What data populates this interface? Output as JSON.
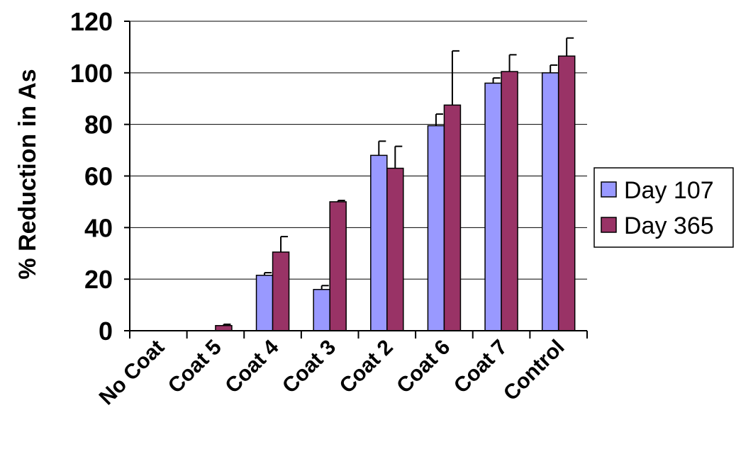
{
  "chart_data": {
    "type": "bar",
    "ylabel": "% Reduction in As",
    "xlabel": "",
    "title": "",
    "ylim": [
      0,
      120
    ],
    "yticks": [
      0,
      20,
      40,
      60,
      80,
      100,
      120
    ],
    "grid": true,
    "legend_position": "right",
    "categories": [
      "No Coat",
      "Coat 5",
      "Coat 4",
      "Coat 3",
      "Coat 2",
      "Coat 6",
      "Coat 7",
      "Control"
    ],
    "series": [
      {
        "name": "Day 107",
        "color": "#9999FF",
        "values": [
          0,
          0,
          21.5,
          16,
          68,
          79.5,
          96,
          100
        ],
        "error": [
          0,
          0,
          1,
          1.5,
          5.5,
          4.5,
          2,
          3
        ]
      },
      {
        "name": "Day 365",
        "color": "#993366",
        "values": [
          0,
          2,
          30.5,
          50,
          63,
          87.5,
          100.5,
          106.5
        ],
        "error": [
          0,
          0.5,
          6,
          0.5,
          8.5,
          21,
          6.5,
          7
        ]
      }
    ]
  }
}
